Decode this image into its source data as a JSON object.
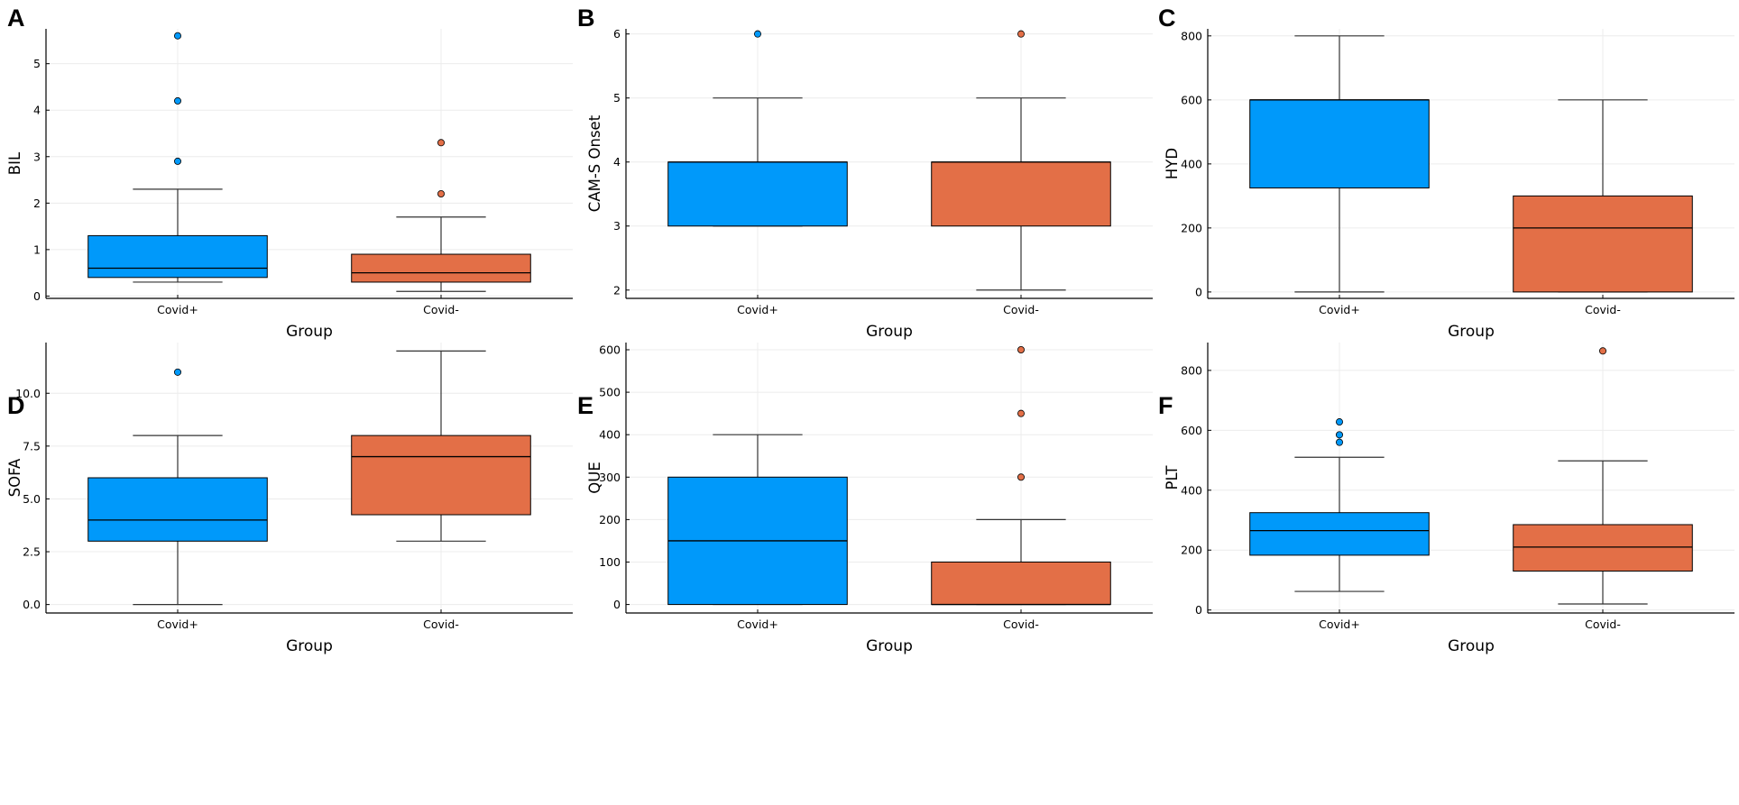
{
  "figure": {
    "colors": {
      "covid_pos": "#0099fa",
      "covid_neg": "#e36f47",
      "grid": "#ececec",
      "stroke": "#000000"
    }
  },
  "chart_data": [
    {
      "panel": "A",
      "type": "box",
      "xlabel": "Group",
      "ylabel": "BIL",
      "categories": [
        "Covid+",
        "Covid-"
      ],
      "ylim": [
        -0.05,
        5.75
      ],
      "yticks": [
        0,
        1,
        2,
        3,
        4,
        5
      ],
      "ytick_labels": [
        "0",
        "1",
        "2",
        "3",
        "4",
        "5"
      ],
      "boxes": [
        {
          "group": "Covid+",
          "whisker_low": 0.3,
          "q1": 0.4,
          "median": 0.6,
          "q3": 1.3,
          "whisker_high": 2.3,
          "outliers": [
            2.9,
            4.2,
            5.6
          ]
        },
        {
          "group": "Covid-",
          "whisker_low": 0.1,
          "q1": 0.3,
          "median": 0.5,
          "q3": 0.9,
          "whisker_high": 1.7,
          "outliers": [
            2.2,
            3.3
          ]
        }
      ]
    },
    {
      "panel": "B",
      "type": "box",
      "xlabel": "Group",
      "ylabel": "CAM-S Onset",
      "categories": [
        "Covid+",
        "Covid-"
      ],
      "ylim": [
        1.87,
        6.08
      ],
      "yticks": [
        2,
        3,
        4,
        5,
        6
      ],
      "ytick_labels": [
        "2",
        "3",
        "4",
        "5",
        "6"
      ],
      "boxes": [
        {
          "group": "Covid+",
          "whisker_low": 3,
          "q1": 3,
          "median": 4,
          "q3": 4,
          "whisker_high": 5,
          "outliers": [
            6
          ]
        },
        {
          "group": "Covid-",
          "whisker_low": 2,
          "q1": 3,
          "median": 4,
          "q3": 4,
          "whisker_high": 5,
          "outliers": [
            6
          ]
        }
      ]
    },
    {
      "panel": "C",
      "type": "box",
      "xlabel": "Group",
      "ylabel": "HYD",
      "categories": [
        "Covid+",
        "Covid-"
      ],
      "ylim": [
        -20,
        822
      ],
      "yticks": [
        0,
        200,
        400,
        600,
        800
      ],
      "ytick_labels": [
        "0",
        "200",
        "400",
        "600",
        "800"
      ],
      "boxes": [
        {
          "group": "Covid+",
          "whisker_low": 0,
          "q1": 325,
          "median": 600,
          "q3": 600,
          "whisker_high": 800,
          "outliers": []
        },
        {
          "group": "Covid-",
          "whisker_low": 0,
          "q1": 0,
          "median": 200,
          "q3": 300,
          "whisker_high": 600,
          "outliers": []
        }
      ]
    },
    {
      "panel": "D",
      "type": "box",
      "xlabel": "Group",
      "ylabel": "SOFA",
      "categories": [
        "Covid+",
        "Covid-"
      ],
      "ylim": [
        -0.4,
        12.4
      ],
      "yticks": [
        0,
        2.5,
        5,
        7.5,
        10
      ],
      "ytick_labels": [
        "0.0",
        "2.5",
        "5.0",
        "7.5",
        "10.0"
      ],
      "boxes": [
        {
          "group": "Covid+",
          "whisker_low": 0,
          "q1": 3,
          "median": 4,
          "q3": 6,
          "whisker_high": 8,
          "outliers": [
            11
          ]
        },
        {
          "group": "Covid-",
          "whisker_low": 3,
          "q1": 4.25,
          "median": 7,
          "q3": 8,
          "whisker_high": 12,
          "outliers": []
        }
      ]
    },
    {
      "panel": "E",
      "type": "box",
      "xlabel": "Group",
      "ylabel": "QUE",
      "categories": [
        "Covid+",
        "Covid-"
      ],
      "ylim": [
        -20,
        617
      ],
      "yticks": [
        0,
        100,
        200,
        300,
        400,
        500,
        600
      ],
      "ytick_labels": [
        "0",
        "100",
        "200",
        "300",
        "400",
        "500",
        "600"
      ],
      "boxes": [
        {
          "group": "Covid+",
          "whisker_low": 0,
          "q1": 0,
          "median": 150,
          "q3": 300,
          "whisker_high": 400,
          "outliers": []
        },
        {
          "group": "Covid-",
          "whisker_low": 0,
          "q1": 0,
          "median": 0,
          "q3": 100,
          "whisker_high": 200,
          "outliers": [
            300,
            450,
            600
          ]
        }
      ]
    },
    {
      "panel": "F",
      "type": "box",
      "xlabel": "Group",
      "ylabel": "PLT",
      "categories": [
        "Covid+",
        "Covid-"
      ],
      "ylim": [
        -10,
        893
      ],
      "yticks": [
        0,
        200,
        400,
        600,
        800
      ],
      "ytick_labels": [
        "0",
        "200",
        "400",
        "600",
        "800"
      ],
      "boxes": [
        {
          "group": "Covid+",
          "whisker_low": 62,
          "q1": 183,
          "median": 265,
          "q3": 325,
          "whisker_high": 510,
          "outliers": [
            560,
            585,
            628
          ]
        },
        {
          "group": "Covid-",
          "whisker_low": 20,
          "q1": 130,
          "median": 210,
          "q3": 285,
          "whisker_high": 498,
          "outliers": [
            865
          ]
        }
      ]
    }
  ]
}
